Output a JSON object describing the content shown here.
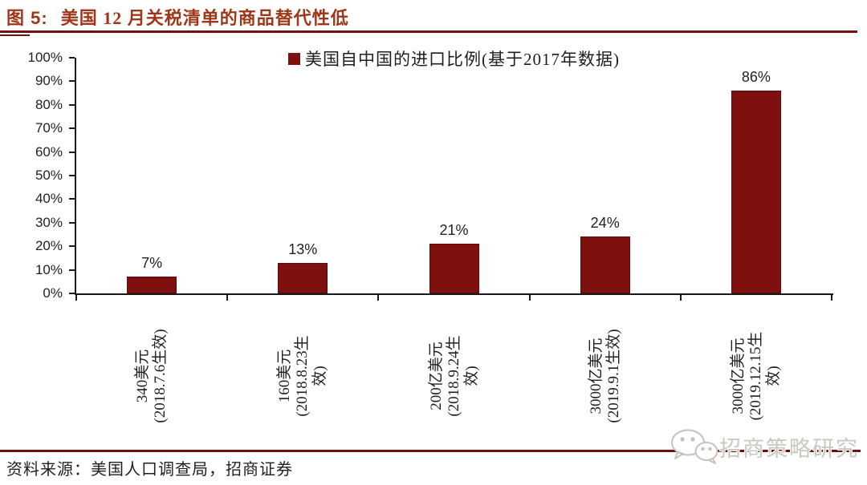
{
  "header": {
    "title_label": "图 5:",
    "title_text": "美国 12 月关税清单的商品替代性低"
  },
  "chart_data": {
    "type": "bar",
    "title": "美国 12 月关税清单的商品替代性低",
    "legend_label": "美国自中国的进口比例(基于2017年数据)",
    "legend_position": "top",
    "grid": false,
    "categories": [
      "340美元(2018.7.6生效)",
      "160美元(2018.8.23生效)",
      "200亿美元(2018.9.24生效)",
      "3000亿美元(2019.9.1生效)",
      "3000亿美元(2019.12.15生效)"
    ],
    "category_label_lines": [
      [
        "340美元",
        "(2018.7.6生效)"
      ],
      [
        "160美元",
        "(2018.8.23生",
        "效)"
      ],
      [
        "200亿美元",
        "(2018.9.24生",
        "效)"
      ],
      [
        "3000亿美元",
        "(2019.9.1生效)"
      ],
      [
        "3000亿美元",
        "(2019.12.15生",
        "效)"
      ]
    ],
    "values": [
      7,
      13,
      21,
      24,
      86
    ],
    "value_labels": [
      "7%",
      "13%",
      "21%",
      "24%",
      "86%"
    ],
    "xlabel": "",
    "ylabel": "",
    "ylim": [
      0,
      100
    ],
    "y_tick_labels": [
      "0%",
      "10%",
      "20%",
      "30%",
      "40%",
      "50%",
      "60%",
      "70%",
      "80%",
      "90%",
      "100%"
    ]
  },
  "footer": {
    "source": "资料来源：美国人口调查局，招商证券"
  },
  "watermark": {
    "icon": "wechat-logo-icon",
    "text": "招商策略研究"
  },
  "colors": {
    "title_red": "#9E3619",
    "rule_red": "#75110C",
    "bar": "#7E100F",
    "bar_border": "#5C0B0A",
    "axis": "#1a1a1a",
    "watermark_gray": "#CBC7C1"
  }
}
